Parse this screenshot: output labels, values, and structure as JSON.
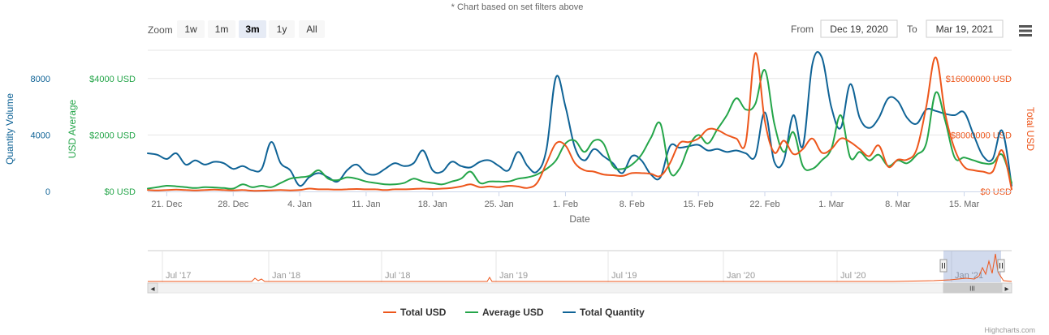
{
  "note": "* Chart based on set filters above",
  "zoom": {
    "label": "Zoom",
    "buttons": [
      "1w",
      "1m",
      "3m",
      "1y",
      "All"
    ],
    "active": "3m"
  },
  "range": {
    "from_label": "From",
    "from_value": "Dec 19, 2020",
    "to_label": "To",
    "to_value": "Mar 19, 2021"
  },
  "menu_icon": "hamburger-menu-icon",
  "credit": "Highcharts.com",
  "colors": {
    "total_usd": "#ED561B",
    "average_usd": "#24A549",
    "total_quantity": "#0F6396"
  },
  "chart_data": {
    "type": "line",
    "title": "",
    "xlabel": "Date",
    "x_ticks": [
      "21. Dec",
      "28. Dec",
      "4. Jan",
      "11. Jan",
      "18. Jan",
      "25. Jan",
      "1. Feb",
      "8. Feb",
      "15. Feb",
      "22. Feb",
      "1. Mar",
      "8. Mar",
      "15. Mar"
    ],
    "x_start_day": 0,
    "x_end_day": 91,
    "x_tick_start_day": 2,
    "y_axes": [
      {
        "id": "quantity",
        "title": "Quantity Volume",
        "ticks": [
          "0",
          "4000",
          "8000"
        ],
        "range": [
          0,
          10000
        ]
      },
      {
        "id": "average",
        "title": "USD Average",
        "ticks": [
          "$0 USD",
          "$2000 USD",
          "$4000 USD"
        ],
        "range": [
          0,
          5000
        ]
      },
      {
        "id": "total",
        "title": "Total USD",
        "ticks": [
          "$0 USD",
          "$8000000 USD",
          "$16000000 USD"
        ],
        "range": [
          0,
          20000000
        ]
      }
    ],
    "series": [
      {
        "name": "Total Quantity",
        "axis": "quantity",
        "color": "#0F6396",
        "points": [
          [
            0,
            2700
          ],
          [
            1,
            2600
          ],
          [
            2,
            2300
          ],
          [
            3,
            2700
          ],
          [
            4,
            1900
          ],
          [
            5,
            2200
          ],
          [
            6,
            1900
          ],
          [
            7,
            2100
          ],
          [
            8,
            2000
          ],
          [
            9,
            1600
          ],
          [
            10,
            1800
          ],
          [
            11,
            1500
          ],
          [
            12,
            1600
          ],
          [
            13,
            3500
          ],
          [
            14,
            2000
          ],
          [
            15,
            1500
          ],
          [
            16,
            400
          ],
          [
            17,
            1000
          ],
          [
            18,
            1300
          ],
          [
            19,
            1000
          ],
          [
            20,
            700
          ],
          [
            21,
            1500
          ],
          [
            22,
            1900
          ],
          [
            23,
            1300
          ],
          [
            24,
            1200
          ],
          [
            25,
            1600
          ],
          [
            26,
            2000
          ],
          [
            27,
            1800
          ],
          [
            28,
            2000
          ],
          [
            29,
            2900
          ],
          [
            30,
            1500
          ],
          [
            31,
            1400
          ],
          [
            32,
            2100
          ],
          [
            33,
            1800
          ],
          [
            34,
            1700
          ],
          [
            35,
            2100
          ],
          [
            36,
            2200
          ],
          [
            37,
            1800
          ],
          [
            38,
            1500
          ],
          [
            39,
            2800
          ],
          [
            40,
            1800
          ],
          [
            41,
            1400
          ],
          [
            42,
            3000
          ],
          [
            43,
            8100
          ],
          [
            44,
            6000
          ],
          [
            45,
            3100
          ],
          [
            46,
            2200
          ],
          [
            47,
            3000
          ],
          [
            48,
            2500
          ],
          [
            49,
            2000
          ],
          [
            50,
            1300
          ],
          [
            51,
            2500
          ],
          [
            52,
            2200
          ],
          [
            53,
            1200
          ],
          [
            54,
            1000
          ],
          [
            55,
            3200
          ],
          [
            56,
            3100
          ],
          [
            57,
            3200
          ],
          [
            58,
            3300
          ],
          [
            59,
            2900
          ],
          [
            60,
            3000
          ],
          [
            61,
            2800
          ],
          [
            62,
            2900
          ],
          [
            63,
            2700
          ],
          [
            64,
            2500
          ],
          [
            65,
            5600
          ],
          [
            66,
            2100
          ],
          [
            67,
            2200
          ],
          [
            68,
            5400
          ],
          [
            69,
            3200
          ],
          [
            70,
            9000
          ],
          [
            71,
            9500
          ],
          [
            72,
            6000
          ],
          [
            73,
            4500
          ],
          [
            74,
            7600
          ],
          [
            75,
            5200
          ],
          [
            76,
            4500
          ],
          [
            77,
            5200
          ],
          [
            78,
            6600
          ],
          [
            79,
            6400
          ],
          [
            80,
            5200
          ],
          [
            81,
            4800
          ],
          [
            82,
            5800
          ],
          [
            83,
            5700
          ],
          [
            84,
            5500
          ],
          [
            85,
            5400
          ],
          [
            86,
            5600
          ],
          [
            87,
            4000
          ],
          [
            88,
            2500
          ],
          [
            89,
            2300
          ],
          [
            90,
            4300
          ],
          [
            91,
            400
          ]
        ]
      },
      {
        "name": "Average USD",
        "axis": "average",
        "color": "#24A549",
        "points": [
          [
            0,
            100
          ],
          [
            1,
            150
          ],
          [
            2,
            200
          ],
          [
            3,
            180
          ],
          [
            4,
            150
          ],
          [
            5,
            120
          ],
          [
            6,
            150
          ],
          [
            7,
            140
          ],
          [
            8,
            120
          ],
          [
            9,
            100
          ],
          [
            10,
            250
          ],
          [
            11,
            150
          ],
          [
            12,
            200
          ],
          [
            13,
            150
          ],
          [
            14,
            300
          ],
          [
            15,
            450
          ],
          [
            16,
            500
          ],
          [
            17,
            550
          ],
          [
            18,
            750
          ],
          [
            19,
            450
          ],
          [
            20,
            400
          ],
          [
            21,
            500
          ],
          [
            22,
            450
          ],
          [
            23,
            350
          ],
          [
            24,
            300
          ],
          [
            25,
            250
          ],
          [
            26,
            250
          ],
          [
            27,
            300
          ],
          [
            28,
            450
          ],
          [
            29,
            350
          ],
          [
            30,
            300
          ],
          [
            31,
            250
          ],
          [
            32,
            350
          ],
          [
            33,
            450
          ],
          [
            34,
            700
          ],
          [
            35,
            300
          ],
          [
            36,
            350
          ],
          [
            37,
            350
          ],
          [
            38,
            350
          ],
          [
            39,
            450
          ],
          [
            40,
            500
          ],
          [
            41,
            600
          ],
          [
            42,
            800
          ],
          [
            43,
            1100
          ],
          [
            44,
            1700
          ],
          [
            45,
            1800
          ],
          [
            46,
            1400
          ],
          [
            47,
            1800
          ],
          [
            48,
            1700
          ],
          [
            49,
            900
          ],
          [
            50,
            800
          ],
          [
            51,
            950
          ],
          [
            52,
            1300
          ],
          [
            53,
            1900
          ],
          [
            54,
            2400
          ],
          [
            55,
            700
          ],
          [
            56,
            800
          ],
          [
            57,
            1600
          ],
          [
            58,
            2000
          ],
          [
            59,
            1700
          ],
          [
            60,
            2200
          ],
          [
            61,
            2700
          ],
          [
            62,
            3300
          ],
          [
            63,
            2900
          ],
          [
            64,
            3100
          ],
          [
            65,
            4300
          ],
          [
            66,
            2400
          ],
          [
            67,
            1400
          ],
          [
            68,
            2100
          ],
          [
            69,
            900
          ],
          [
            70,
            800
          ],
          [
            71,
            1100
          ],
          [
            72,
            1500
          ],
          [
            73,
            2700
          ],
          [
            74,
            1200
          ],
          [
            75,
            1400
          ],
          [
            76,
            1100
          ],
          [
            77,
            1300
          ],
          [
            78,
            900
          ],
          [
            79,
            1100
          ],
          [
            80,
            1000
          ],
          [
            81,
            1300
          ],
          [
            82,
            1700
          ],
          [
            83,
            3500
          ],
          [
            84,
            2500
          ],
          [
            85,
            1200
          ],
          [
            86,
            1200
          ],
          [
            87,
            1100
          ],
          [
            88,
            1000
          ],
          [
            89,
            1000
          ],
          [
            90,
            1300
          ],
          [
            91,
            300
          ]
        ]
      },
      {
        "name": "Total USD",
        "axis": "total",
        "color": "#ED561B",
        "points": [
          [
            0,
            200000
          ],
          [
            1,
            150000
          ],
          [
            2,
            200000
          ],
          [
            3,
            250000
          ],
          [
            4,
            200000
          ],
          [
            5,
            150000
          ],
          [
            6,
            200000
          ],
          [
            7,
            250000
          ],
          [
            8,
            200000
          ],
          [
            9,
            150000
          ],
          [
            10,
            200000
          ],
          [
            11,
            100000
          ],
          [
            12,
            100000
          ],
          [
            13,
            150000
          ],
          [
            14,
            200000
          ],
          [
            15,
            150000
          ],
          [
            16,
            200000
          ],
          [
            17,
            400000
          ],
          [
            18,
            300000
          ],
          [
            19,
            300000
          ],
          [
            20,
            250000
          ],
          [
            21,
            300000
          ],
          [
            22,
            350000
          ],
          [
            23,
            300000
          ],
          [
            24,
            300000
          ],
          [
            25,
            200000
          ],
          [
            26,
            300000
          ],
          [
            27,
            300000
          ],
          [
            28,
            350000
          ],
          [
            29,
            400000
          ],
          [
            30,
            350000
          ],
          [
            31,
            400000
          ],
          [
            32,
            500000
          ],
          [
            33,
            700000
          ],
          [
            34,
            1000000
          ],
          [
            35,
            600000
          ],
          [
            36,
            700000
          ],
          [
            37,
            600000
          ],
          [
            38,
            800000
          ],
          [
            39,
            700000
          ],
          [
            40,
            500000
          ],
          [
            41,
            1200000
          ],
          [
            42,
            4000000
          ],
          [
            43,
            6800000
          ],
          [
            44,
            6500000
          ],
          [
            45,
            4000000
          ],
          [
            46,
            3000000
          ],
          [
            47,
            2800000
          ],
          [
            48,
            2400000
          ],
          [
            49,
            2300000
          ],
          [
            50,
            2200000
          ],
          [
            51,
            2600000
          ],
          [
            52,
            2600000
          ],
          [
            53,
            2500000
          ],
          [
            54,
            2200000
          ],
          [
            55,
            4000000
          ],
          [
            56,
            6800000
          ],
          [
            57,
            7000000
          ],
          [
            58,
            7500000
          ],
          [
            59,
            8800000
          ],
          [
            60,
            8700000
          ],
          [
            61,
            8000000
          ],
          [
            62,
            7500000
          ],
          [
            63,
            7000000
          ],
          [
            64,
            19600000
          ],
          [
            65,
            10000000
          ],
          [
            66,
            5500000
          ],
          [
            67,
            7200000
          ],
          [
            68,
            5300000
          ],
          [
            69,
            6000000
          ],
          [
            70,
            7500000
          ],
          [
            71,
            5500000
          ],
          [
            72,
            6000000
          ],
          [
            73,
            7500000
          ],
          [
            74,
            7000000
          ],
          [
            75,
            6000000
          ],
          [
            76,
            5000000
          ],
          [
            77,
            6500000
          ],
          [
            78,
            3500000
          ],
          [
            79,
            4500000
          ],
          [
            80,
            4500000
          ],
          [
            81,
            6000000
          ],
          [
            82,
            12000000
          ],
          [
            83,
            19000000
          ],
          [
            84,
            11000000
          ],
          [
            85,
            6000000
          ],
          [
            86,
            3500000
          ],
          [
            87,
            3000000
          ],
          [
            88,
            2800000
          ],
          [
            89,
            2800000
          ],
          [
            90,
            5800000
          ],
          [
            91,
            300000
          ]
        ]
      }
    ],
    "navigator": {
      "ticks": [
        "Jul '17",
        "Jan '18",
        "Jul '18",
        "Jan '19",
        "Jul '19",
        "Jan '20",
        "Jul '20",
        "Jan '21"
      ],
      "series_color": "#ED561B",
      "handle_glyph": "III",
      "scroll_left_glyph": "◂",
      "scroll_right_glyph": "▸"
    },
    "legend": {
      "placement": "bottom-center",
      "items": [
        "Total USD",
        "Average USD",
        "Total Quantity"
      ]
    }
  }
}
